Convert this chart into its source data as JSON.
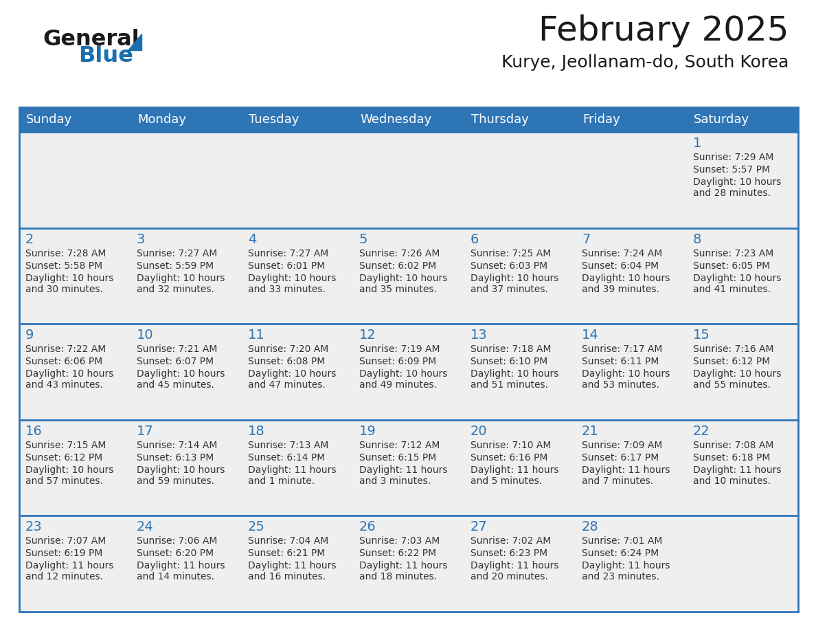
{
  "title": "February 2025",
  "subtitle": "Kurye, Jeollanam-do, South Korea",
  "days_of_week": [
    "Sunday",
    "Monday",
    "Tuesday",
    "Wednesday",
    "Thursday",
    "Friday",
    "Saturday"
  ],
  "header_bg": "#2E75B6",
  "header_text": "#FFFFFF",
  "cell_bg": "#EFEFEF",
  "day_number_color": "#2E75B6",
  "text_color": "#333333",
  "line_color": "#2E75B6",
  "calendar_data": [
    [
      null,
      null,
      null,
      null,
      null,
      null,
      {
        "day": 1,
        "sunrise": "7:29 AM",
        "sunset": "5:57 PM",
        "daylight": "10 hours and 28 minutes."
      }
    ],
    [
      {
        "day": 2,
        "sunrise": "7:28 AM",
        "sunset": "5:58 PM",
        "daylight": "10 hours and 30 minutes."
      },
      {
        "day": 3,
        "sunrise": "7:27 AM",
        "sunset": "5:59 PM",
        "daylight": "10 hours and 32 minutes."
      },
      {
        "day": 4,
        "sunrise": "7:27 AM",
        "sunset": "6:01 PM",
        "daylight": "10 hours and 33 minutes."
      },
      {
        "day": 5,
        "sunrise": "7:26 AM",
        "sunset": "6:02 PM",
        "daylight": "10 hours and 35 minutes."
      },
      {
        "day": 6,
        "sunrise": "7:25 AM",
        "sunset": "6:03 PM",
        "daylight": "10 hours and 37 minutes."
      },
      {
        "day": 7,
        "sunrise": "7:24 AM",
        "sunset": "6:04 PM",
        "daylight": "10 hours and 39 minutes."
      },
      {
        "day": 8,
        "sunrise": "7:23 AM",
        "sunset": "6:05 PM",
        "daylight": "10 hours and 41 minutes."
      }
    ],
    [
      {
        "day": 9,
        "sunrise": "7:22 AM",
        "sunset": "6:06 PM",
        "daylight": "10 hours and 43 minutes."
      },
      {
        "day": 10,
        "sunrise": "7:21 AM",
        "sunset": "6:07 PM",
        "daylight": "10 hours and 45 minutes."
      },
      {
        "day": 11,
        "sunrise": "7:20 AM",
        "sunset": "6:08 PM",
        "daylight": "10 hours and 47 minutes."
      },
      {
        "day": 12,
        "sunrise": "7:19 AM",
        "sunset": "6:09 PM",
        "daylight": "10 hours and 49 minutes."
      },
      {
        "day": 13,
        "sunrise": "7:18 AM",
        "sunset": "6:10 PM",
        "daylight": "10 hours and 51 minutes."
      },
      {
        "day": 14,
        "sunrise": "7:17 AM",
        "sunset": "6:11 PM",
        "daylight": "10 hours and 53 minutes."
      },
      {
        "day": 15,
        "sunrise": "7:16 AM",
        "sunset": "6:12 PM",
        "daylight": "10 hours and 55 minutes."
      }
    ],
    [
      {
        "day": 16,
        "sunrise": "7:15 AM",
        "sunset": "6:12 PM",
        "daylight": "10 hours and 57 minutes."
      },
      {
        "day": 17,
        "sunrise": "7:14 AM",
        "sunset": "6:13 PM",
        "daylight": "10 hours and 59 minutes."
      },
      {
        "day": 18,
        "sunrise": "7:13 AM",
        "sunset": "6:14 PM",
        "daylight": "11 hours and 1 minute."
      },
      {
        "day": 19,
        "sunrise": "7:12 AM",
        "sunset": "6:15 PM",
        "daylight": "11 hours and 3 minutes."
      },
      {
        "day": 20,
        "sunrise": "7:10 AM",
        "sunset": "6:16 PM",
        "daylight": "11 hours and 5 minutes."
      },
      {
        "day": 21,
        "sunrise": "7:09 AM",
        "sunset": "6:17 PM",
        "daylight": "11 hours and 7 minutes."
      },
      {
        "day": 22,
        "sunrise": "7:08 AM",
        "sunset": "6:18 PM",
        "daylight": "11 hours and 10 minutes."
      }
    ],
    [
      {
        "day": 23,
        "sunrise": "7:07 AM",
        "sunset": "6:19 PM",
        "daylight": "11 hours and 12 minutes."
      },
      {
        "day": 24,
        "sunrise": "7:06 AM",
        "sunset": "6:20 PM",
        "daylight": "11 hours and 14 minutes."
      },
      {
        "day": 25,
        "sunrise": "7:04 AM",
        "sunset": "6:21 PM",
        "daylight": "11 hours and 16 minutes."
      },
      {
        "day": 26,
        "sunrise": "7:03 AM",
        "sunset": "6:22 PM",
        "daylight": "11 hours and 18 minutes."
      },
      {
        "day": 27,
        "sunrise": "7:02 AM",
        "sunset": "6:23 PM",
        "daylight": "11 hours and 20 minutes."
      },
      {
        "day": 28,
        "sunrise": "7:01 AM",
        "sunset": "6:24 PM",
        "daylight": "11 hours and 23 minutes."
      },
      null
    ]
  ],
  "logo_general_color": "#1a1a1a",
  "logo_blue_color": "#1a6faf",
  "logo_triangle_color": "#1a6faf",
  "title_color": "#1a1a1a",
  "subtitle_color": "#1a1a1a",
  "fig_width": 11.88,
  "fig_height": 9.18,
  "dpi": 100,
  "header_fontsize": 13,
  "day_num_fontsize": 14,
  "cell_text_fontsize": 10,
  "title_fontsize": 36,
  "subtitle_fontsize": 18
}
